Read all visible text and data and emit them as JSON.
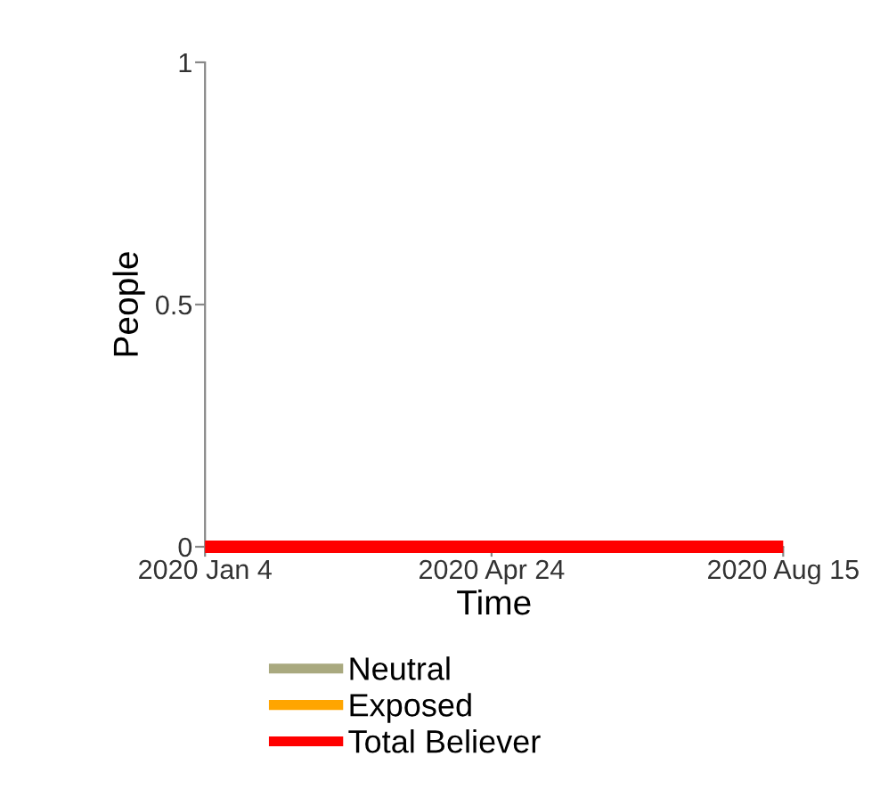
{
  "chart_data": {
    "type": "line",
    "xlabel": "Time",
    "ylabel": "People",
    "x": [
      "2020-01-04",
      "2020-04-24",
      "2020-08-15"
    ],
    "series": [
      {
        "name": "Neutral",
        "color": "#a9a97f",
        "values": [
          null,
          null,
          null
        ]
      },
      {
        "name": "Exposed",
        "color": "#ffa500",
        "values": [
          null,
          null,
          null
        ]
      },
      {
        "name": "Total Believer",
        "color": "#ff0000",
        "values": [
          0,
          0,
          0
        ]
      }
    ],
    "xlim": [
      "2020-01-04",
      "2020-08-15"
    ],
    "xticks": [
      {
        "value": "2020-01-04",
        "label": "2020 Jan 4"
      },
      {
        "value": "2020-04-24",
        "label": "2020 Apr 24"
      },
      {
        "value": "2020-08-15",
        "label": "2020 Aug 15"
      }
    ],
    "ylim": [
      0,
      1
    ],
    "yticks": [
      0,
      0.5,
      1
    ],
    "grid": false,
    "legend": "bottom",
    "marker": "none",
    "line_style": "solid"
  }
}
